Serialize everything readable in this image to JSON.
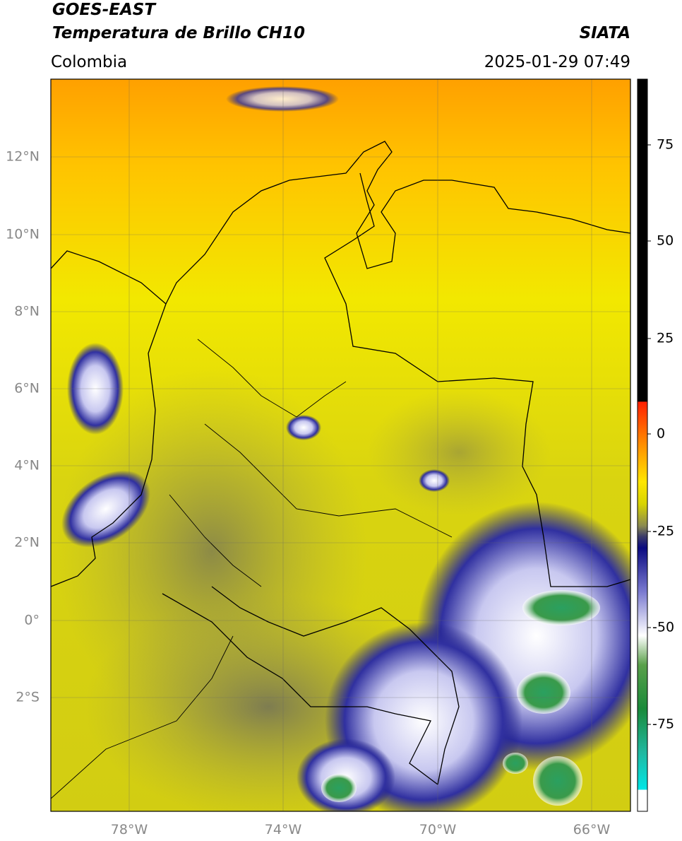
{
  "header": {
    "satellite": "GOES-EAST",
    "product": "Temperatura de Brillo CH10",
    "source": "SIATA",
    "region": "Colombia",
    "datetime": "2025-01-29 07:49"
  },
  "map": {
    "lat_labels": [
      "12°N",
      "10°N",
      "8°N",
      "6°N",
      "4°N",
      "2°N",
      "0°",
      "2°S"
    ],
    "lon_labels": [
      "78°W",
      "74°W",
      "70°W",
      "66°W"
    ]
  },
  "colorbar": {
    "ticks": [
      "75",
      "50",
      "25",
      "0",
      "-25",
      "-50",
      "-75"
    ]
  }
}
